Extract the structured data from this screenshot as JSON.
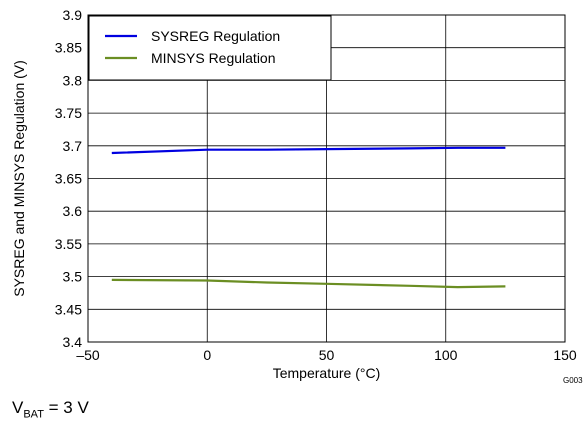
{
  "chart_data": {
    "type": "line",
    "xlabel": "Temperature (°C)",
    "ylabel": "SYSREG and MINSYS Regulation (V)",
    "xlim": [
      -50,
      150
    ],
    "ylim": [
      3.4,
      3.9
    ],
    "xticks": [
      -50,
      0,
      50,
      100,
      150
    ],
    "xtick_labels": [
      "–50",
      "0",
      "50",
      "100",
      "150"
    ],
    "yticks": [
      3.4,
      3.45,
      3.5,
      3.55,
      3.6,
      3.65,
      3.7,
      3.75,
      3.8,
      3.85,
      3.9
    ],
    "ytick_labels": [
      "3.4",
      "3.45",
      "3.5",
      "3.55",
      "3.6",
      "3.65",
      "3.7",
      "3.75",
      "3.8",
      "3.85",
      "3.9"
    ],
    "grid": true,
    "legend_position": "top-left",
    "series": [
      {
        "name": "SYSREG Regulation",
        "color": "#0000e0",
        "x": [
          -40,
          0,
          25,
          50,
          85,
          105,
          125
        ],
        "y": [
          3.689,
          3.694,
          3.694,
          3.695,
          3.696,
          3.697,
          3.697
        ]
      },
      {
        "name": "MINSYS Regulation",
        "color": "#6b8e23",
        "x": [
          -40,
          0,
          25,
          50,
          85,
          105,
          125
        ],
        "y": [
          3.495,
          3.494,
          3.491,
          3.489,
          3.486,
          3.484,
          3.485
        ]
      }
    ],
    "figure_id": "G003"
  },
  "note": {
    "prefix": "V",
    "subscript": "BAT",
    "suffix": " = 3 V"
  }
}
